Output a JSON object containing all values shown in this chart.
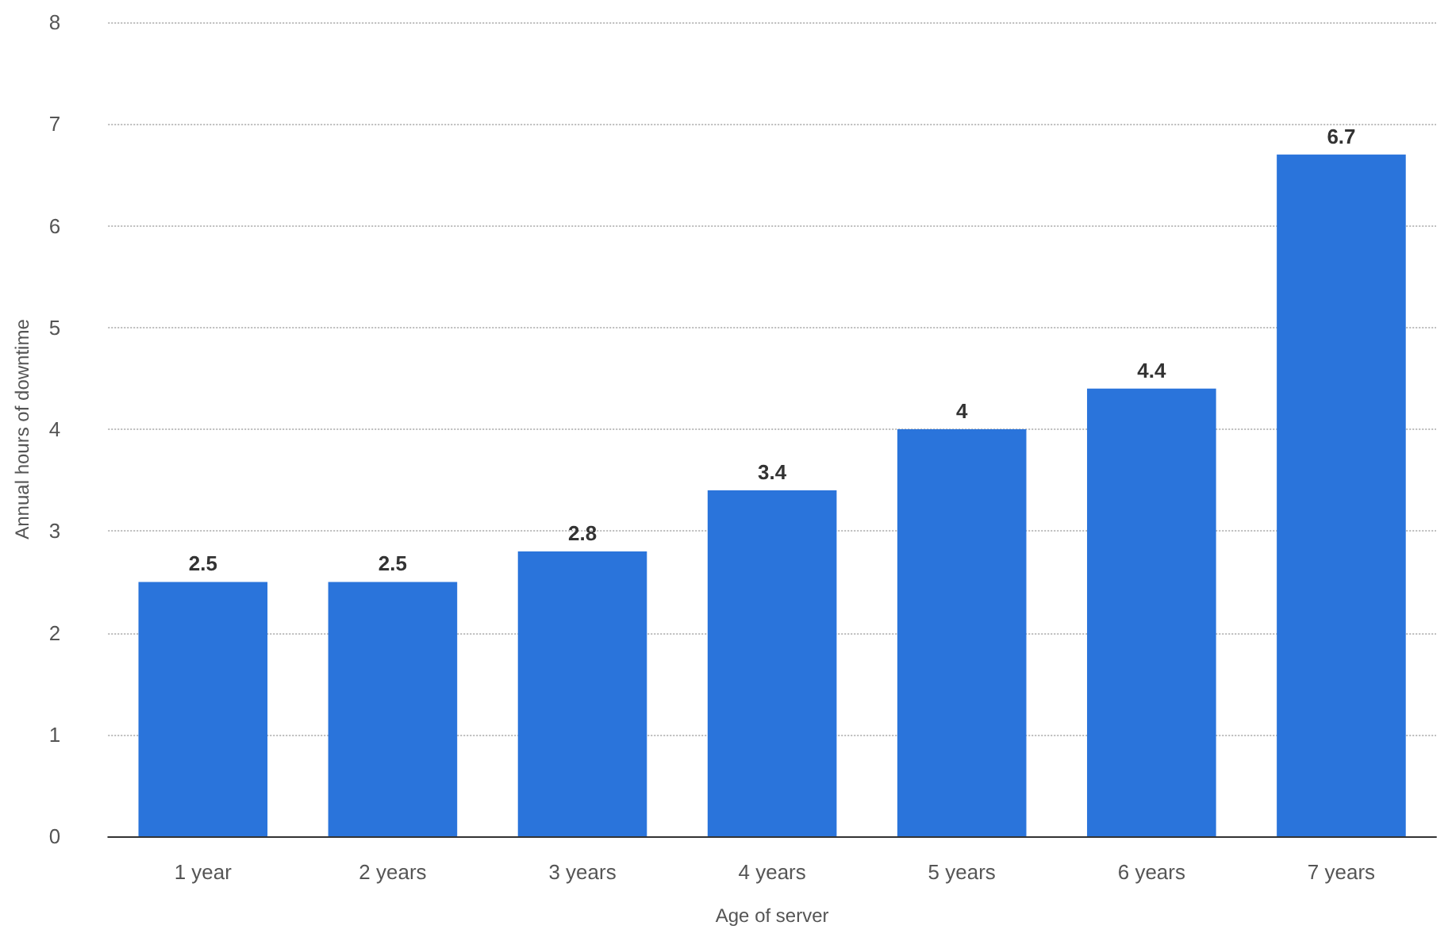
{
  "chart_data": {
    "type": "bar",
    "xlabel": "Age of server",
    "ylabel": "Annual hours of downtime",
    "categories": [
      "1 year",
      "2 years",
      "3 years",
      "4 years",
      "5 years",
      "6 years",
      "7 years"
    ],
    "values": [
      2.5,
      2.5,
      2.8,
      3.4,
      4,
      4.4,
      6.7
    ],
    "color": "#2a74db",
    "ylim": [
      0,
      8
    ],
    "yticks": [
      0,
      1,
      2,
      3,
      4,
      5,
      6,
      7,
      8
    ],
    "grid": "y",
    "data_labels": true
  }
}
